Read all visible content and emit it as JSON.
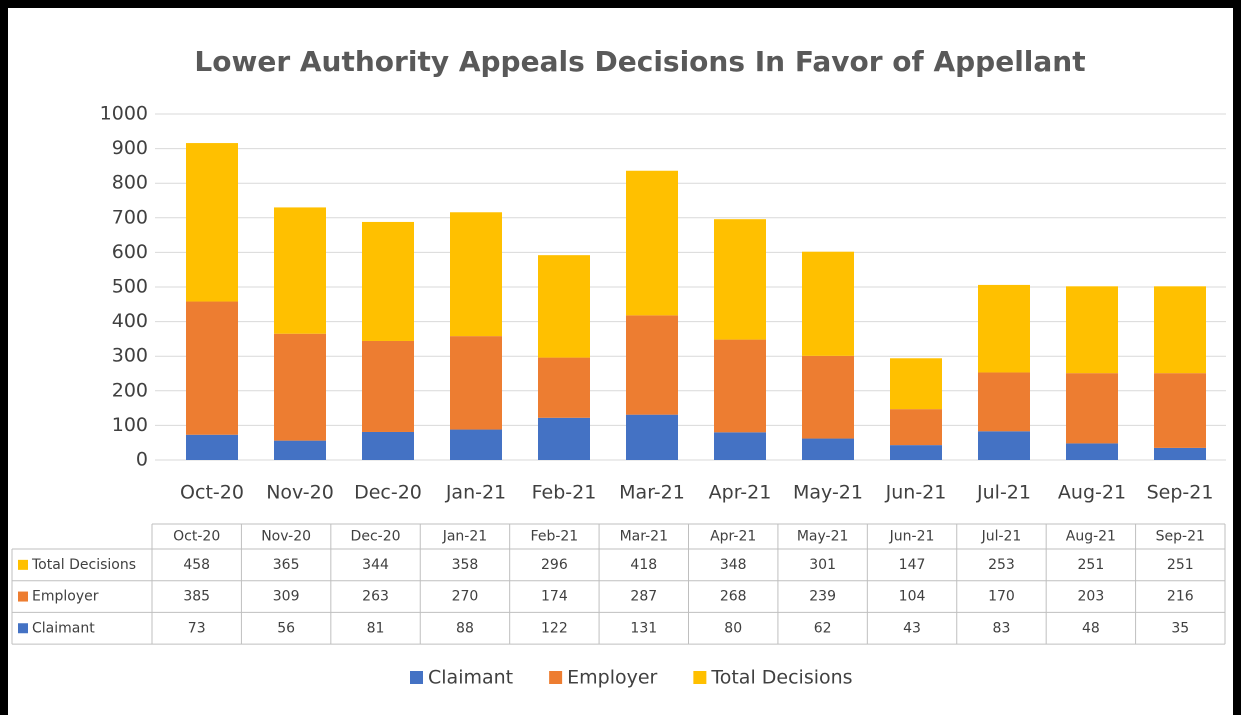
{
  "chart_data": {
    "type": "stacked_bar",
    "title": "Lower Authority Appeals Decisions In Favor of Appellant",
    "categories": [
      "Oct-20",
      "Nov-20",
      "Dec-20",
      "Jan-21",
      "Feb-21",
      "Mar-21",
      "Apr-21",
      "May-21",
      "Jun-21",
      "Jul-21",
      "Aug-21",
      "Sep-21"
    ],
    "series": [
      {
        "name": "Claimant",
        "color": "#4472c4",
        "values": [
          73,
          56,
          81,
          88,
          122,
          131,
          80,
          62,
          43,
          83,
          48,
          35
        ]
      },
      {
        "name": "Employer",
        "color": "#ed7d31",
        "values": [
          385,
          309,
          263,
          270,
          174,
          287,
          268,
          239,
          104,
          170,
          203,
          216
        ]
      },
      {
        "name": "Total Decisions",
        "color": "#ffc000",
        "values": [
          458,
          365,
          344,
          358,
          296,
          418,
          348,
          301,
          147,
          253,
          251,
          251
        ]
      }
    ],
    "ylim": [
      0,
      1000
    ],
    "yticks": [
      0,
      100,
      200,
      300,
      400,
      500,
      600,
      700,
      800,
      900,
      1000
    ],
    "grid": true,
    "legend": "bottom"
  }
}
